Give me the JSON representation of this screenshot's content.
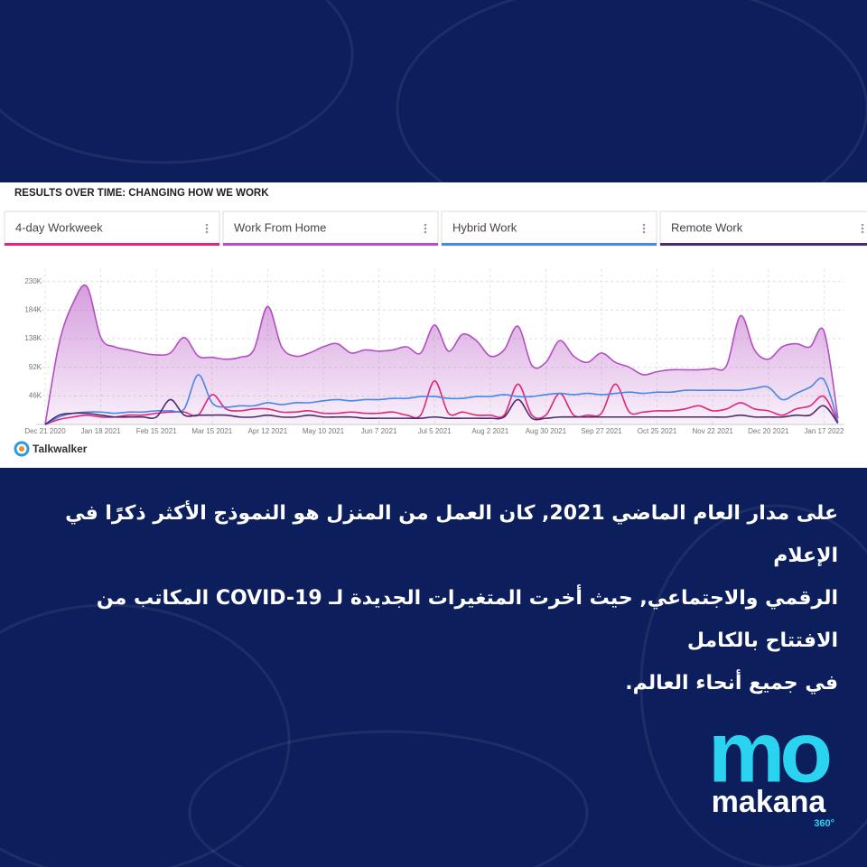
{
  "chart_data": {
    "type": "line",
    "title": "RESULTS OVER TIME: CHANGING HOW WE WORK",
    "source": "Talkwalker",
    "categories": [
      "Dec 21 2020",
      null,
      null,
      null,
      "Jan 18 2021",
      null,
      null,
      null,
      "Feb 15 2021",
      null,
      null,
      null,
      "Mar 15 2021",
      null,
      null,
      null,
      "Apr 12 2021",
      null,
      null,
      null,
      "May 10 2021",
      null,
      null,
      null,
      "Jun 7 2021",
      null,
      null,
      null,
      "Jul 5 2021",
      null,
      null,
      null,
      "Aug 2 2021",
      null,
      null,
      null,
      "Aug 30 2021",
      null,
      null,
      null,
      "Sep 27 2021",
      null,
      null,
      null,
      "Oct 25 2021",
      null,
      null,
      null,
      "Nov 22 2021",
      null,
      null,
      null,
      "Dec 20 2021",
      null,
      null,
      null,
      "Jan 17 2022",
      null
    ],
    "ylim": [
      0,
      250000
    ],
    "yticks": [
      {
        "value": 46000,
        "label": "46K"
      },
      {
        "value": 92000,
        "label": "92K"
      },
      {
        "value": 138000,
        "label": "138K"
      },
      {
        "value": 184000,
        "label": "184K"
      },
      {
        "value": 230000,
        "label": "230K"
      }
    ],
    "grid": true,
    "series": [
      {
        "name": "4-day Workweek",
        "color": "#e0257a",
        "area": false,
        "values": [
          0,
          8000,
          12000,
          15000,
          12000,
          12000,
          15000,
          15000,
          18000,
          20000,
          20000,
          15000,
          48000,
          25000,
          22000,
          25000,
          25000,
          20000,
          20000,
          22000,
          18000,
          18000,
          20000,
          18000,
          18000,
          20000,
          15000,
          15000,
          70000,
          18000,
          20000,
          15000,
          15000,
          15000,
          65000,
          15000,
          15000,
          50000,
          15000,
          15000,
          18000,
          65000,
          20000,
          20000,
          22000,
          22000,
          25000,
          30000,
          22000,
          25000,
          35000,
          25000,
          22000,
          15000,
          25000,
          30000,
          45000,
          3000
        ]
      },
      {
        "name": "Work From Home",
        "color": "#b44ec2",
        "area": true,
        "values": [
          0,
          130000,
          195000,
          222000,
          140000,
          125000,
          120000,
          115000,
          112000,
          115000,
          140000,
          110000,
          108000,
          105000,
          108000,
          120000,
          190000,
          125000,
          110000,
          115000,
          125000,
          130000,
          115000,
          120000,
          118000,
          120000,
          125000,
          115000,
          160000,
          118000,
          145000,
          135000,
          110000,
          120000,
          158000,
          95000,
          100000,
          135000,
          110000,
          100000,
          115000,
          100000,
          92000,
          80000,
          85000,
          88000,
          88000,
          88000,
          90000,
          95000,
          175000,
          120000,
          105000,
          125000,
          130000,
          125000,
          150000,
          10000
        ]
      },
      {
        "name": "Hybrid Work",
        "color": "#4a86e8",
        "area": false,
        "values": [
          0,
          12000,
          18000,
          20000,
          20000,
          18000,
          20000,
          20000,
          22000,
          22000,
          25000,
          80000,
          35000,
          28000,
          30000,
          30000,
          35000,
          32000,
          35000,
          35000,
          38000,
          40000,
          38000,
          40000,
          40000,
          42000,
          42000,
          45000,
          45000,
          42000,
          42000,
          45000,
          45000,
          48000,
          45000,
          45000,
          48000,
          50000,
          48000,
          50000,
          48000,
          50000,
          52000,
          50000,
          52000,
          52000,
          55000,
          55000,
          55000,
          55000,
          55000,
          58000,
          60000,
          40000,
          50000,
          60000,
          72000,
          5000
        ]
      },
      {
        "name": "Remote Work",
        "color": "#4a2a6e",
        "area": false,
        "values": [
          0,
          15000,
          18000,
          18000,
          15000,
          12000,
          12000,
          12000,
          12000,
          40000,
          15000,
          15000,
          15000,
          15000,
          12000,
          12000,
          15000,
          12000,
          12000,
          15000,
          12000,
          12000,
          12000,
          10000,
          10000,
          10000,
          10000,
          10000,
          12000,
          10000,
          10000,
          10000,
          10000,
          12000,
          40000,
          10000,
          10000,
          12000,
          12000,
          12000,
          12000,
          12000,
          12000,
          12000,
          12000,
          12000,
          12000,
          12000,
          12000,
          12000,
          15000,
          12000,
          12000,
          12000,
          15000,
          15000,
          30000,
          2000
        ]
      }
    ]
  },
  "caption": {
    "lines": [
      "على مدار العام الماضي 2021, كان العمل من المنزل هو النموذج الأكثر ذكرًا في الإعلام",
      "الرقمي والاجتماعي, حيث أخرت المتغيرات الجديدة لـ COVID-19 المكاتب من الافتتاح بالكامل",
      "في جميع أنحاء العالم."
    ]
  },
  "logo": {
    "mark": "mo",
    "name": "makana",
    "edition": "360°"
  }
}
